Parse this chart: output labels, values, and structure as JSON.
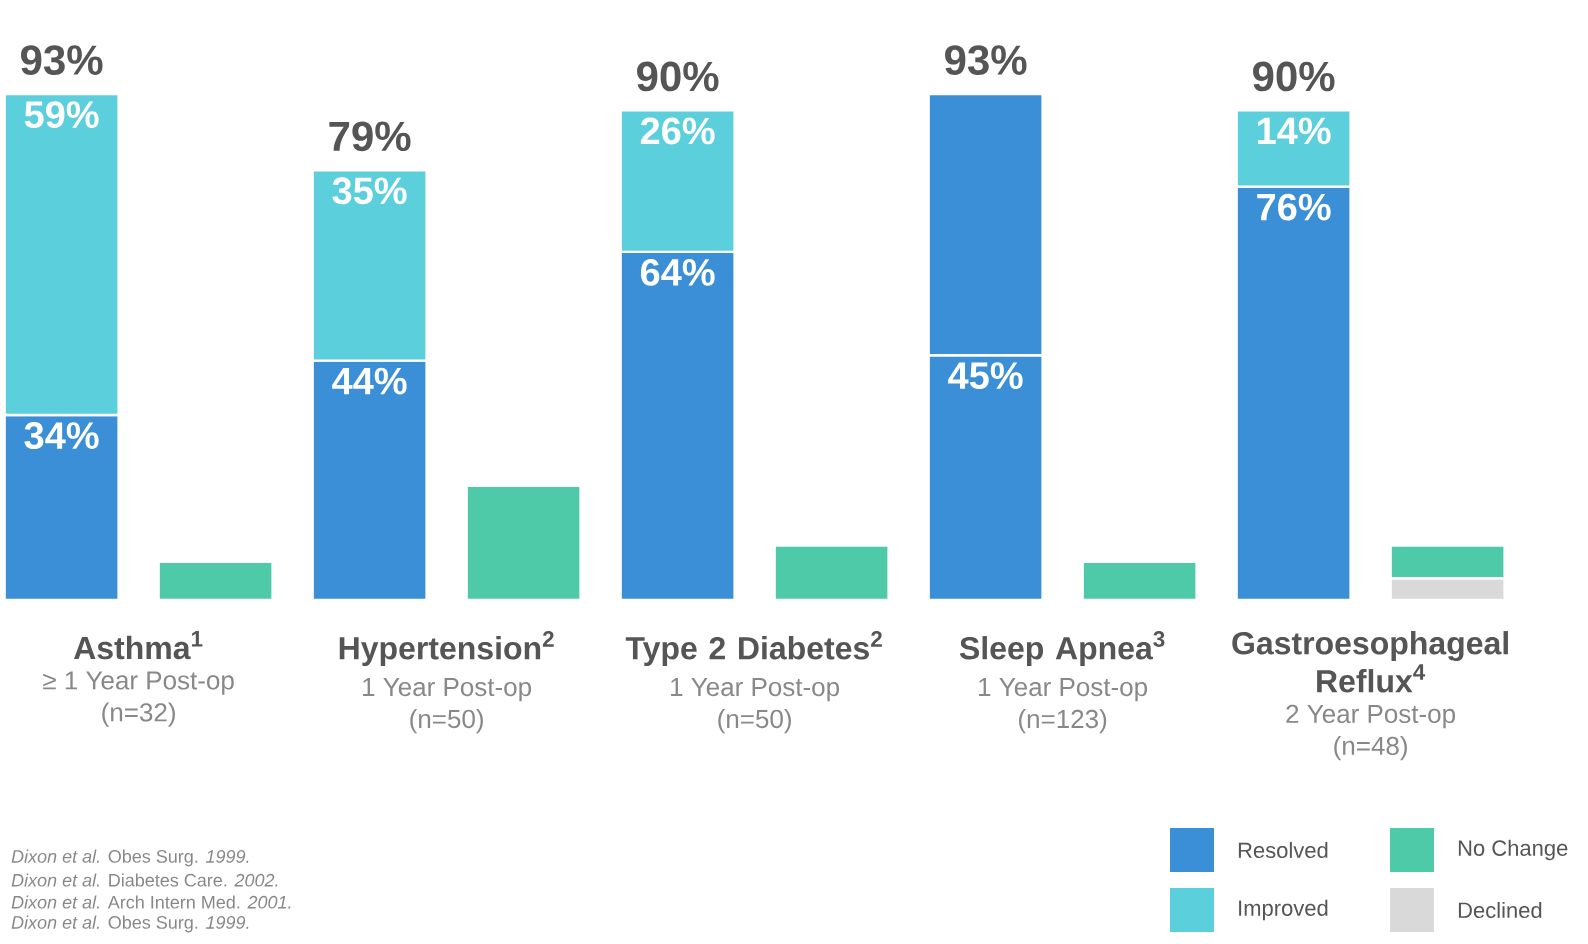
{
  "chart_data": {
    "type": "bar",
    "stacked": true,
    "categories": [
      "Asthma$^{1}$",
      null,
      "Hypertension$^{2}$",
      null,
      "Type 2 Diabetes$^{2}$",
      null,
      "Sleep Apnea$^{3}$",
      null,
      "Gastroesophageal Reflux$^{4}$",
      null
    ],
    "series": [
      {
        "name": "Resolved",
        "color": "#3a8fd6",
        "values": [
          34,
          null,
          44,
          null,
          64,
          null,
          45,
          null,
          76,
          null
        ],
        "value_labels": [
          "34%",
          null,
          "44%",
          null,
          "64%",
          null,
          "45%",
          null,
          "76%",
          null
        ]
      },
      {
        "name": "Improved",
        "color": "#5ccfdc",
        "colors": [
          "#5ccfdc",
          "#5ccfdc",
          "#5ccfdc",
          "#5ccfdc",
          "#5ccfdc",
          "#5ccfdc",
          "#3a8fd6",
          "#5ccfdc",
          "#5ccfdc",
          "#5ccfdc"
        ],
        "values": [
          59,
          null,
          35,
          null,
          26,
          null,
          48,
          null,
          14,
          null
        ],
        "value_labels": [
          "59%",
          null,
          "35%",
          null,
          "26%",
          null,
          null,
          null,
          "14%",
          null
        ]
      },
      {
        "name": "Declined",
        "color": "#d9d9d9",
        "values": [
          null,
          null,
          null,
          null,
          null,
          null,
          null,
          null,
          null,
          4
        ]
      },
      {
        "name": "No Change",
        "color": "#4fcaa8",
        "values": [
          null,
          7,
          null,
          21,
          null,
          10,
          null,
          7,
          null,
          6
        ]
      }
    ],
    "totals": [
      "93%",
      null,
      "79%",
      null,
      "90%",
      null,
      "93%",
      null,
      "90%",
      null
    ],
    "legend": "bottom right",
    "annotations": [
      "≥ 1 Year Post-op",
      "(n=32)",
      "1 Year Post-op",
      "(n=50)",
      "1 Year Post-op",
      "(n=50)",
      "1 Year Post-op",
      "(n=123)",
      "2 Year Post-op",
      "(n=48)",
      "*Dixon et al.* Obes Surg. *1999.*",
      "*Dixon et al.* Diabetes Care. *2002.*",
      "*Dixon et al.* Arch Intern Med. *2001.*",
      "*Dixon et al.* Obes Surg. *1999.*"
    ]
  }
}
